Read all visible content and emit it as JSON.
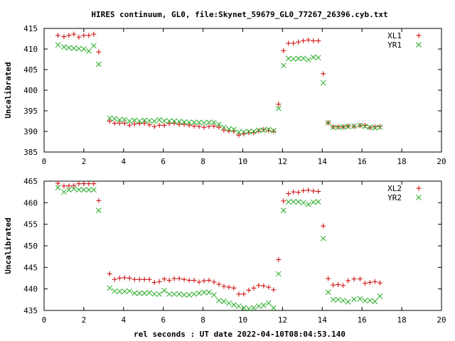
{
  "chart_data": {
    "title": "HIRES continuum, GL0, file:Skynet_59679_GL0_77267_26396.cyb.txt",
    "xlabel": "rel seconds : UT date 2022-04-10T08:04:53.140",
    "colors": {
      "series1": "#cc0000",
      "series2": "#22aa22"
    },
    "panels": [
      {
        "type": "scatter",
        "ylabel": "Uncalibrated",
        "xlim": [
          0,
          20
        ],
        "ylim": [
          385,
          415
        ],
        "xticks": [
          0,
          2,
          4,
          6,
          8,
          10,
          12,
          14,
          16,
          18,
          20
        ],
        "yticks": [
          385,
          390,
          395,
          400,
          405,
          410,
          415
        ],
        "legend": "top-right",
        "x": [
          0.7,
          1.0,
          1.25,
          1.5,
          1.75,
          2.0,
          2.25,
          2.5,
          2.75,
          3.05,
          3.3,
          3.55,
          3.8,
          4.05,
          4.3,
          4.55,
          4.8,
          5.05,
          5.3,
          5.55,
          5.8,
          6.05,
          6.3,
          6.55,
          6.8,
          7.05,
          7.3,
          7.55,
          7.8,
          8.05,
          8.3,
          8.55,
          8.8,
          9.05,
          9.3,
          9.55,
          9.8,
          10.05,
          10.3,
          10.55,
          10.8,
          11.05,
          11.3,
          11.55,
          11.8,
          12.05,
          12.3,
          12.55,
          12.8,
          13.05,
          13.3,
          13.55,
          13.8,
          14.05,
          14.3,
          14.55,
          14.8,
          15.05,
          15.3,
          15.6,
          15.9,
          16.15,
          16.4,
          16.65,
          16.9,
          17.15,
          17.4,
          17.65,
          17.9,
          18.15,
          18.4,
          18.65,
          18.9
        ],
        "series": [
          {
            "name": "XL1",
            "marker": "plus",
            "values": [
              413.3,
              413.0,
              413.3,
              413.6,
              412.9,
              413.3,
              413.3,
              413.6,
              409.3,
              null,
              392.5,
              392.0,
              392.0,
              392.0,
              391.5,
              391.8,
              391.9,
              392.0,
              391.6,
              391.2,
              391.5,
              391.5,
              391.9,
              392.0,
              391.7,
              391.7,
              391.5,
              391.3,
              391.2,
              391.0,
              391.2,
              391.3,
              391.0,
              390.3,
              390.1,
              390.0,
              389.1,
              389.4,
              389.7,
              389.7,
              390.1,
              390.5,
              390.2,
              390.0,
              396.6,
              409.6,
              411.4,
              411.4,
              411.7,
              412.0,
              412.2,
              412.0,
              412.0,
              404.0,
              392.1,
              391.1,
              391.1,
              391.1,
              391.3,
              391.2,
              391.4,
              391.5,
              390.9,
              391.1,
              391.2,
              null,
              null,
              null,
              null,
              null,
              null,
              null,
              null
            ]
          },
          {
            "name": "YR1",
            "marker": "cross",
            "values": [
              411.0,
              410.5,
              410.3,
              410.2,
              410.1,
              410.0,
              409.5,
              410.8,
              406.3,
              null,
              393.2,
              393.1,
              392.8,
              392.9,
              392.5,
              392.7,
              392.5,
              392.7,
              392.6,
              392.5,
              392.8,
              392.6,
              392.5,
              392.5,
              392.4,
              392.3,
              392.2,
              392.2,
              392.2,
              392.1,
              392.2,
              392.2,
              391.7,
              391.0,
              390.6,
              390.5,
              389.8,
              389.9,
              390.0,
              390.0,
              390.3,
              390.3,
              390.5,
              390.2,
              395.6,
              406.0,
              407.7,
              407.6,
              407.7,
              407.7,
              407.4,
              408.0,
              407.9,
              401.8,
              392.1,
              391.0,
              391.0,
              391.1,
              391.2,
              391.3,
              391.5,
              391.2,
              391.0,
              390.9,
              391.0,
              null,
              null,
              null,
              null,
              null,
              null,
              null,
              null
            ]
          }
        ]
      },
      {
        "type": "scatter",
        "ylabel": "Uncalibrated",
        "xlim": [
          0,
          20
        ],
        "ylim": [
          435,
          465
        ],
        "xticks": [
          0,
          2,
          4,
          6,
          8,
          10,
          12,
          14,
          16,
          18,
          20
        ],
        "yticks": [
          435,
          440,
          445,
          450,
          455,
          460,
          465
        ],
        "legend": "top-right",
        "x": [
          0.7,
          1.0,
          1.25,
          1.5,
          1.75,
          2.0,
          2.25,
          2.5,
          2.75,
          3.05,
          3.3,
          3.55,
          3.8,
          4.05,
          4.3,
          4.55,
          4.8,
          5.05,
          5.3,
          5.55,
          5.8,
          6.05,
          6.3,
          6.55,
          6.8,
          7.05,
          7.3,
          7.55,
          7.8,
          8.05,
          8.3,
          8.55,
          8.8,
          9.05,
          9.3,
          9.55,
          9.8,
          10.05,
          10.3,
          10.55,
          10.8,
          11.05,
          11.3,
          11.55,
          11.8,
          12.05,
          12.3,
          12.55,
          12.8,
          13.05,
          13.3,
          13.55,
          13.8,
          14.05,
          14.3,
          14.55,
          14.8,
          15.05,
          15.3,
          15.6,
          15.9,
          16.15,
          16.4,
          16.65,
          16.9,
          17.15,
          17.4,
          17.65,
          17.9,
          18.15,
          18.4,
          18.65,
          18.9
        ],
        "series": [
          {
            "name": "XL2",
            "marker": "plus",
            "values": [
              464.5,
              463.9,
              463.9,
              464.0,
              464.4,
              464.4,
              464.4,
              464.4,
              460.5,
              null,
              443.5,
              442.2,
              442.5,
              442.6,
              442.5,
              442.2,
              442.2,
              442.2,
              442.2,
              441.5,
              441.7,
              442.3,
              442.0,
              442.4,
              442.4,
              442.2,
              442.0,
              442.0,
              441.6,
              441.9,
              442.0,
              441.6,
              441.1,
              440.6,
              440.4,
              440.2,
              438.8,
              438.8,
              439.7,
              440.2,
              440.8,
              440.7,
              440.4,
              439.8,
              446.8,
              460.4,
              462.1,
              462.5,
              462.4,
              462.8,
              462.9,
              462.7,
              462.6,
              454.6,
              442.4,
              440.9,
              441.0,
              440.8,
              441.9,
              442.3,
              442.3,
              441.3,
              441.5,
              441.7,
              441.4,
              null,
              null,
              null,
              null,
              null,
              null,
              null,
              null
            ]
          },
          {
            "name": "YR2",
            "marker": "cross",
            "values": [
              463.5,
              462.5,
              463.0,
              463.2,
              463.0,
              463.0,
              463.0,
              463.0,
              458.2,
              null,
              440.2,
              439.5,
              439.4,
              439.4,
              439.5,
              439.0,
              439.0,
              439.0,
              439.1,
              438.8,
              438.8,
              439.6,
              438.8,
              438.8,
              438.8,
              438.6,
              438.6,
              438.8,
              439.0,
              439.2,
              439.2,
              438.6,
              437.3,
              437.1,
              436.7,
              436.3,
              436.0,
              435.6,
              435.4,
              435.6,
              436.0,
              436.2,
              436.7,
              435.6,
              443.5,
              458.2,
              460.2,
              460.2,
              460.2,
              460.0,
              459.6,
              460.1,
              460.2,
              451.7,
              439.2,
              437.5,
              437.5,
              437.3,
              437.0,
              437.6,
              437.7,
              437.3,
              437.3,
              437.1,
              438.3,
              null,
              null,
              null,
              null,
              null,
              null,
              null,
              null
            ]
          }
        ]
      }
    ]
  }
}
